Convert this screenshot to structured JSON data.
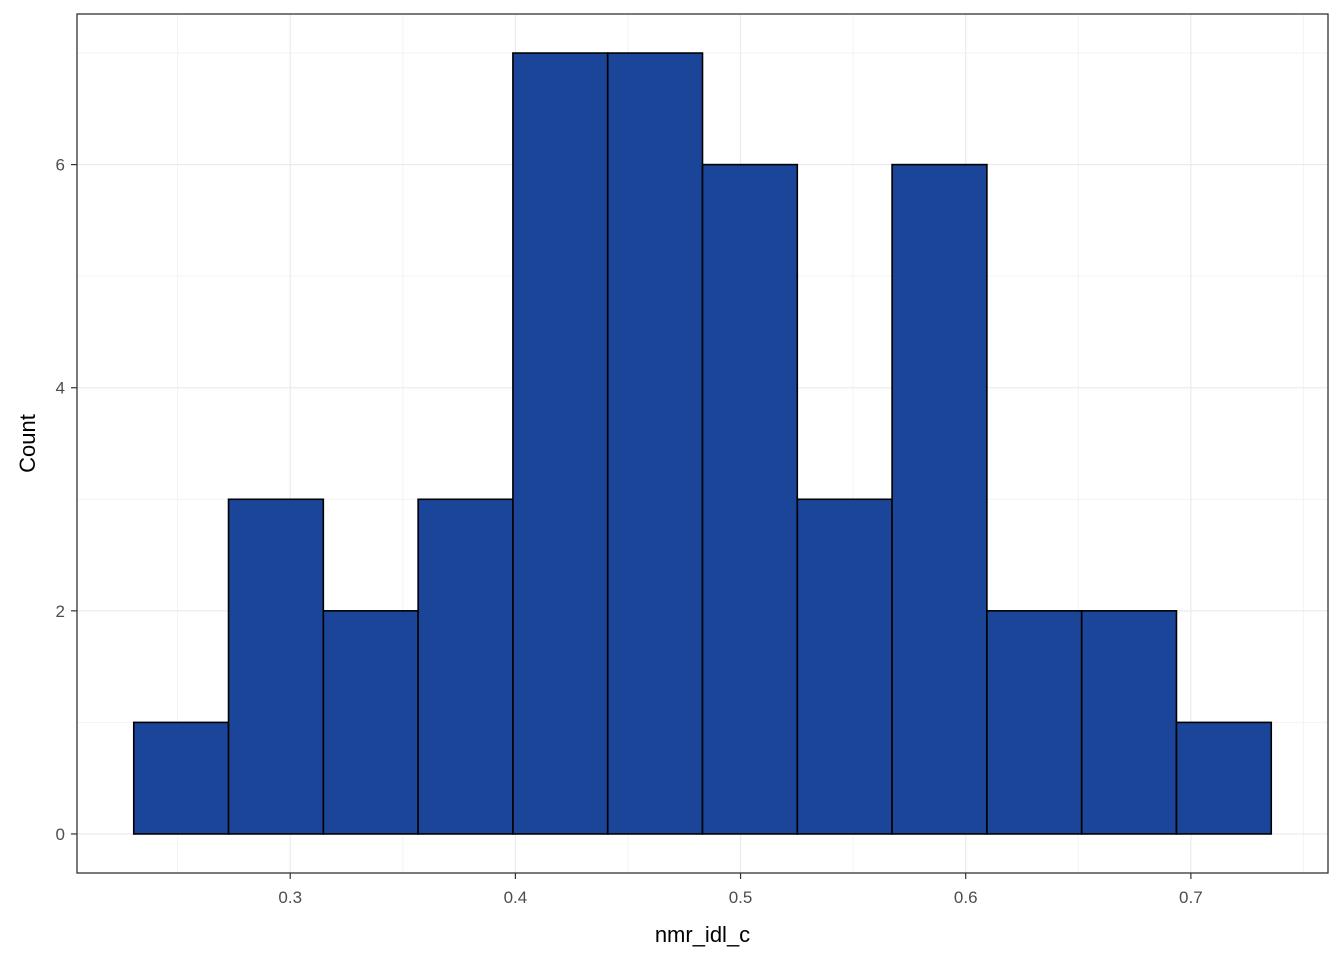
{
  "chart_data": {
    "type": "bar",
    "subtype": "histogram",
    "xlabel": "nmr_idl_c",
    "ylabel": "Count",
    "bin_edges": [
      0.2305,
      0.2726,
      0.3147,
      0.3568,
      0.3989,
      0.441,
      0.4831,
      0.5252,
      0.5673,
      0.6094,
      0.6515,
      0.6936,
      0.7357
    ],
    "counts": [
      1,
      3,
      2,
      3,
      7,
      7,
      6,
      3,
      6,
      2,
      2,
      1
    ],
    "xlim": [
      0.2053,
      0.7609
    ],
    "ylim": [
      -0.35,
      7.35
    ],
    "x_ticks": [
      0.3,
      0.4,
      0.5,
      0.6,
      0.7
    ],
    "x_tick_labels": [
      "0.3",
      "0.4",
      "0.5",
      "0.6",
      "0.7"
    ],
    "y_ticks": [
      0,
      2,
      4,
      6
    ],
    "y_tick_labels": [
      "0",
      "2",
      "4",
      "6"
    ],
    "x_minor_ticks": [
      0.25,
      0.35,
      0.45,
      0.55,
      0.65,
      0.75
    ],
    "y_minor_ticks": [
      1,
      3,
      5,
      7
    ],
    "grid": true,
    "legend": "none",
    "colors": {
      "bar_fill": "#1A4599",
      "bar_stroke": "#000000",
      "grid_major": "#ebebeb",
      "grid_minor": "#f3f3f3",
      "panel_border": "#333333"
    }
  }
}
